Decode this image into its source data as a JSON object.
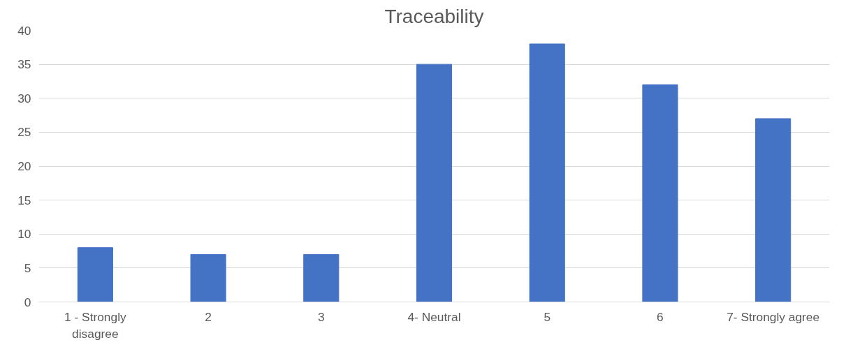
{
  "chart_data": {
    "type": "bar",
    "title": "Traceability",
    "categories": [
      "1 - Strongly disagree",
      "2",
      "3",
      "4- Neutral",
      "5",
      "6",
      "7- Strongly agree"
    ],
    "values": [
      8,
      7,
      7,
      35,
      38,
      32,
      27
    ],
    "color": "#4472c4",
    "ylim": [
      0,
      40
    ],
    "yticks": [
      0,
      5,
      10,
      15,
      20,
      25,
      30,
      35,
      40
    ],
    "grid": "y"
  }
}
